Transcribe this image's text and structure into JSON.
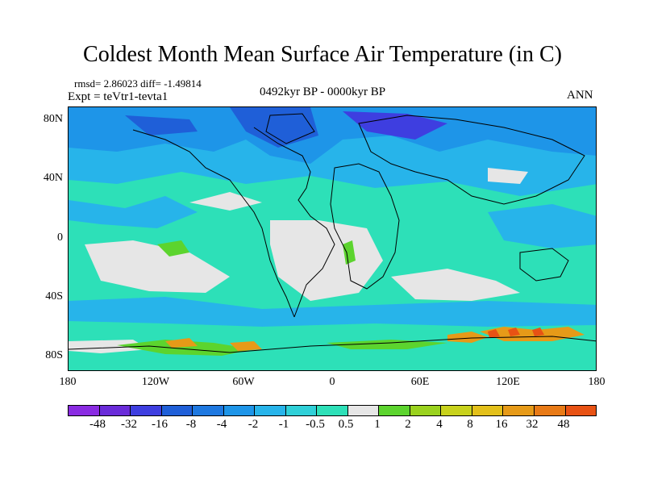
{
  "title": "Coldest Month Mean Surface Air Temperature (in C)",
  "stats": "rmsd= 2.86023 diff= -1.49814",
  "experiment": "Expt = teVtr1-tevta1",
  "period": "0492kyr BP - 0000kyr BP",
  "season": "ANN",
  "lat_labels": [
    "80N",
    "40N",
    "0",
    "40S",
    "80S"
  ],
  "lon_labels": [
    "180",
    "120W",
    "60W",
    "0",
    "60E",
    "120E",
    "180"
  ],
  "colorbar": {
    "labels": [
      "-48",
      "-32",
      "-16",
      "-8",
      "-4",
      "-2",
      "-1",
      "-0.5",
      "0.5",
      "1",
      "2",
      "4",
      "8",
      "16",
      "32",
      "48"
    ],
    "colors": [
      "#8a2be2",
      "#6a2bd9",
      "#3e3ee0",
      "#1f5fd8",
      "#1e78e0",
      "#1e95e8",
      "#27b4ea",
      "#2fd0d8",
      "#2de0b8",
      "#e6e6e6",
      "#5cd42e",
      "#9ad21e",
      "#c8d21c",
      "#e3c01a",
      "#e69a18",
      "#e87a16",
      "#e85214",
      "#e0300e"
    ]
  },
  "map_colors": {
    "ocean_main": "#2de0b8",
    "light_blue": "#27b4ea",
    "blue": "#1e95e8",
    "dark_blue": "#1f5fd8",
    "deep_blue": "#3e3ee0",
    "grey": "#e6e6e6",
    "green": "#5cd42e",
    "yellow": "#c8d21c",
    "orange": "#e69a18",
    "red": "#e85214"
  }
}
